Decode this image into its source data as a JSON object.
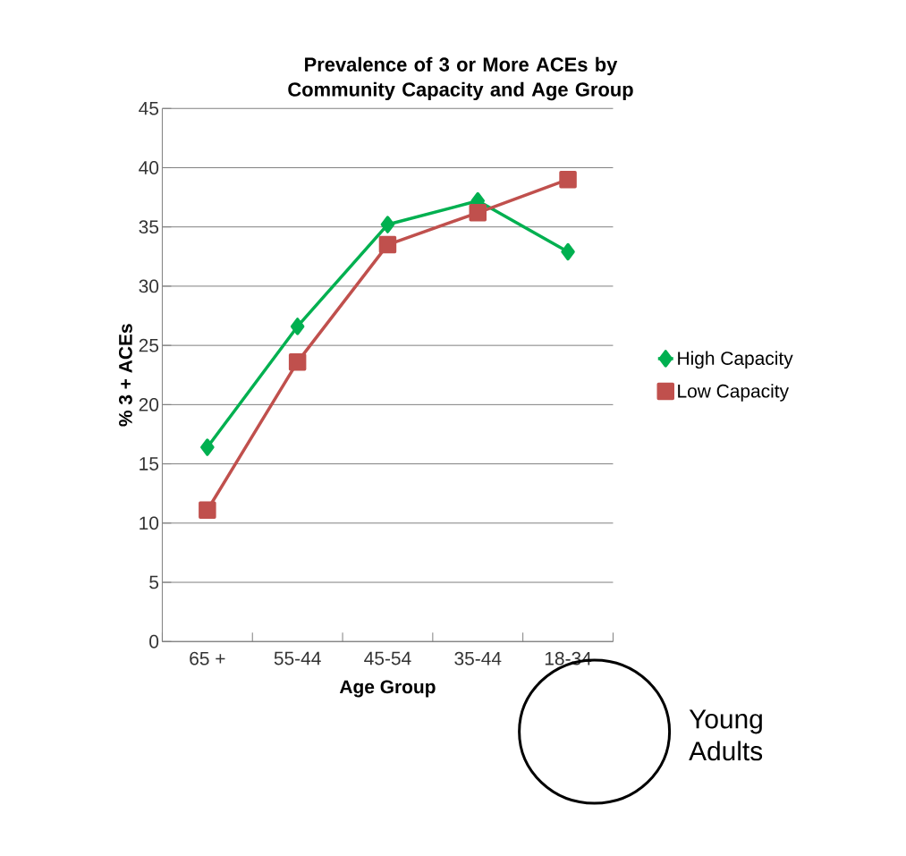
{
  "chart_data": {
    "type": "line",
    "title": "Prevalence of 3 or More ACEs by Community Capacity and Age Group",
    "xlabel": "Age Group",
    "ylabel": "% 3 + ACEs",
    "categories": [
      "65 +",
      "55-44",
      "45-54",
      "35-44",
      "18-34"
    ],
    "series": [
      {
        "name": "High Capacity",
        "color": "#00b050",
        "marker": "diamond",
        "values": [
          16.4,
          26.6,
          35.2,
          37.2,
          32.9
        ]
      },
      {
        "name": "Low Capacity",
        "color": "#c0504d",
        "marker": "square",
        "values": [
          11.1,
          23.6,
          33.5,
          36.2,
          39.0
        ]
      }
    ],
    "ylim": [
      0,
      45
    ],
    "yticks": [
      0,
      5,
      10,
      15,
      20,
      25,
      30,
      35,
      40,
      45
    ],
    "grid": "y",
    "legend": "right",
    "annotations": [
      "Young Adults"
    ]
  }
}
